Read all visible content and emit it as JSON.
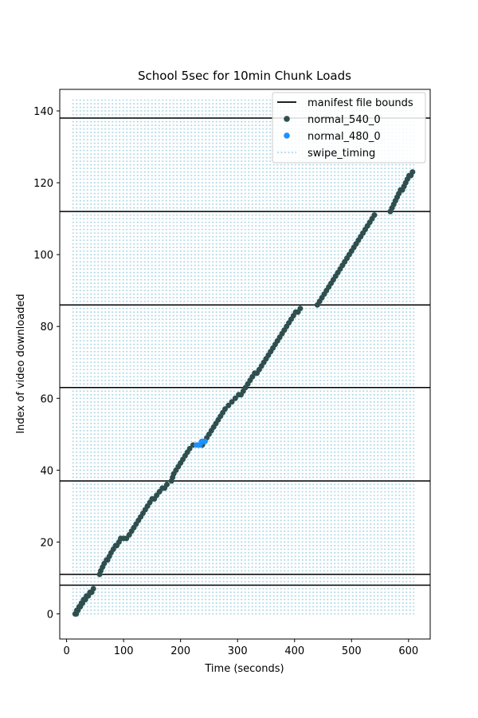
{
  "chart_data": {
    "type": "scatter",
    "title": "School 5sec for 10min Chunk Loads",
    "xlabel": "Time (seconds)",
    "ylabel": "Index of video downloaded",
    "xlim": [
      -12,
      638
    ],
    "ylim": [
      -7,
      146
    ],
    "xticks": [
      0,
      100,
      200,
      300,
      400,
      500,
      600
    ],
    "yticks": [
      0,
      20,
      40,
      60,
      80,
      100,
      120,
      140
    ],
    "grid": false,
    "legend_position": "top-right",
    "colors": {
      "manifest": "#000000",
      "normal_540_0": "#2f4f4f",
      "normal_480_0": "#1e90ff",
      "swipe_timing": "#add8e6"
    },
    "legend": [
      {
        "label": "manifest file bounds",
        "kind": "line",
        "color": "#000000"
      },
      {
        "label": "normal_540_0",
        "kind": "dot",
        "color": "#2f4f4f"
      },
      {
        "label": "normal_480_0",
        "kind": "dot",
        "color": "#1e90ff"
      },
      {
        "label": "swipe_timing",
        "kind": "dotted",
        "color": "#add8e6"
      }
    ],
    "manifest_bounds": [
      8,
      11,
      37,
      63,
      86,
      112,
      138
    ],
    "swipe_timing": {
      "x_range": [
        10,
        610
      ],
      "y_values": [
        0,
        1,
        2,
        3,
        4,
        5,
        6,
        7,
        8,
        9,
        10,
        11,
        12,
        13,
        14,
        15,
        16,
        17,
        18,
        19,
        20,
        21,
        22,
        23,
        24,
        25,
        26,
        27,
        28,
        29,
        30,
        31,
        32,
        33,
        34,
        35,
        36,
        37,
        38,
        39,
        40,
        41,
        42,
        43,
        44,
        45,
        46,
        47,
        48,
        49,
        50,
        51,
        52,
        53,
        54,
        55,
        56,
        57,
        58,
        59,
        60,
        61,
        62,
        63,
        64,
        65,
        66,
        67,
        68,
        69,
        70,
        71,
        72,
        73,
        74,
        75,
        76,
        77,
        78,
        79,
        80,
        81,
        82,
        83,
        84,
        85,
        86,
        87,
        88,
        89,
        90,
        91,
        92,
        93,
        94,
        95,
        96,
        97,
        98,
        99,
        100,
        101,
        102,
        103,
        104,
        105,
        106,
        107,
        108,
        109,
        110,
        111,
        112,
        113,
        114,
        115,
        116,
        117,
        118,
        119,
        120,
        121,
        122,
        123,
        124,
        125,
        126,
        127,
        128,
        129,
        130,
        131,
        132,
        133,
        134,
        135,
        136,
        137,
        138,
        139,
        140,
        141,
        142,
        143
      ]
    },
    "series": [
      {
        "name": "normal_540_0",
        "points": [
          [
            15,
            0
          ],
          [
            17,
            0
          ],
          [
            18,
            1
          ],
          [
            20,
            1
          ],
          [
            22,
            2
          ],
          [
            24,
            2
          ],
          [
            26,
            3
          ],
          [
            28,
            3
          ],
          [
            30,
            4
          ],
          [
            33,
            4
          ],
          [
            35,
            5
          ],
          [
            38,
            5
          ],
          [
            41,
            6
          ],
          [
            44,
            6
          ],
          [
            47,
            7
          ],
          [
            58,
            11
          ],
          [
            60,
            12
          ],
          [
            63,
            13
          ],
          [
            66,
            14
          ],
          [
            70,
            15
          ],
          [
            72,
            15
          ],
          [
            75,
            16
          ],
          [
            78,
            17
          ],
          [
            82,
            18
          ],
          [
            86,
            19
          ],
          [
            88,
            19
          ],
          [
            92,
            20
          ],
          [
            95,
            21
          ],
          [
            100,
            21
          ],
          [
            105,
            21
          ],
          [
            110,
            22
          ],
          [
            114,
            23
          ],
          [
            118,
            24
          ],
          [
            122,
            25
          ],
          [
            126,
            26
          ],
          [
            130,
            27
          ],
          [
            134,
            28
          ],
          [
            138,
            29
          ],
          [
            142,
            30
          ],
          [
            146,
            31
          ],
          [
            150,
            32
          ],
          [
            154,
            32
          ],
          [
            158,
            33
          ],
          [
            163,
            34
          ],
          [
            168,
            35
          ],
          [
            172,
            35
          ],
          [
            176,
            36
          ],
          [
            184,
            37
          ],
          [
            186,
            38
          ],
          [
            188,
            39
          ],
          [
            192,
            40
          ],
          [
            196,
            41
          ],
          [
            200,
            42
          ],
          [
            204,
            43
          ],
          [
            208,
            44
          ],
          [
            212,
            45
          ],
          [
            216,
            46
          ],
          [
            222,
            47
          ],
          [
            238,
            47
          ],
          [
            242,
            48
          ],
          [
            246,
            49
          ],
          [
            250,
            50
          ],
          [
            254,
            51
          ],
          [
            258,
            52
          ],
          [
            262,
            53
          ],
          [
            266,
            54
          ],
          [
            270,
            55
          ],
          [
            274,
            56
          ],
          [
            278,
            57
          ],
          [
            284,
            58
          ],
          [
            290,
            59
          ],
          [
            296,
            60
          ],
          [
            302,
            61
          ],
          [
            306,
            61
          ],
          [
            310,
            62
          ],
          [
            314,
            63
          ],
          [
            318,
            64
          ],
          [
            322,
            65
          ],
          [
            326,
            66
          ],
          [
            330,
            67
          ],
          [
            334,
            67
          ],
          [
            338,
            68
          ],
          [
            342,
            69
          ],
          [
            346,
            70
          ],
          [
            350,
            71
          ],
          [
            354,
            72
          ],
          [
            358,
            73
          ],
          [
            362,
            74
          ],
          [
            366,
            75
          ],
          [
            370,
            76
          ],
          [
            374,
            77
          ],
          [
            378,
            78
          ],
          [
            382,
            79
          ],
          [
            386,
            80
          ],
          [
            390,
            81
          ],
          [
            394,
            82
          ],
          [
            398,
            83
          ],
          [
            402,
            84
          ],
          [
            406,
            84
          ],
          [
            410,
            85
          ],
          [
            440,
            86
          ],
          [
            444,
            87
          ],
          [
            448,
            88
          ],
          [
            452,
            89
          ],
          [
            456,
            90
          ],
          [
            460,
            91
          ],
          [
            464,
            92
          ],
          [
            468,
            93
          ],
          [
            472,
            94
          ],
          [
            476,
            95
          ],
          [
            480,
            96
          ],
          [
            484,
            97
          ],
          [
            488,
            98
          ],
          [
            492,
            99
          ],
          [
            496,
            100
          ],
          [
            500,
            101
          ],
          [
            504,
            102
          ],
          [
            508,
            103
          ],
          [
            512,
            104
          ],
          [
            516,
            105
          ],
          [
            520,
            106
          ],
          [
            524,
            107
          ],
          [
            528,
            108
          ],
          [
            532,
            109
          ],
          [
            536,
            110
          ],
          [
            540,
            111
          ],
          [
            568,
            112
          ],
          [
            571,
            113
          ],
          [
            574,
            114
          ],
          [
            577,
            115
          ],
          [
            580,
            116
          ],
          [
            583,
            117
          ],
          [
            586,
            118
          ],
          [
            589,
            118
          ],
          [
            592,
            119
          ],
          [
            595,
            120
          ],
          [
            598,
            121
          ],
          [
            601,
            122
          ],
          [
            604,
            122
          ],
          [
            607,
            123
          ]
        ]
      },
      {
        "name": "normal_480_0",
        "points": [
          [
            228,
            47
          ],
          [
            231,
            47
          ],
          [
            234,
            47
          ],
          [
            237,
            48
          ],
          [
            240,
            48
          ],
          [
            243,
            48
          ]
        ]
      }
    ]
  }
}
